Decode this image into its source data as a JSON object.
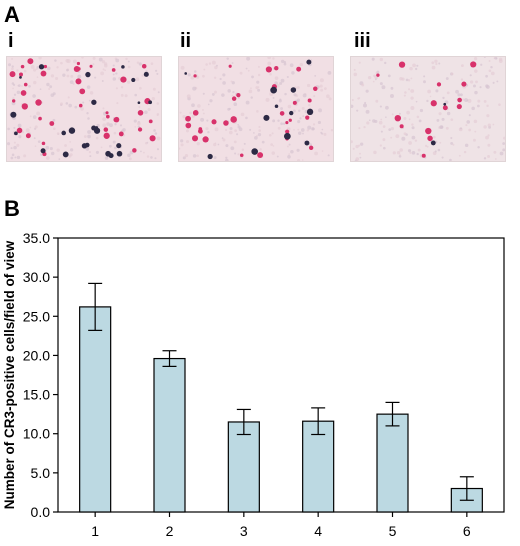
{
  "panel_a": {
    "letter": "A",
    "images": [
      {
        "label": "i",
        "blue_dots": 24,
        "red_dots": 40
      },
      {
        "label": "ii",
        "blue_dots": 12,
        "red_dots": 30
      },
      {
        "label": "iii",
        "blue_dots": 2,
        "red_dots": 14
      }
    ]
  },
  "panel_b": {
    "letter": "B"
  },
  "chart_data": {
    "type": "bar",
    "categories": [
      "1",
      "2",
      "3",
      "4",
      "5",
      "6"
    ],
    "values": [
      26.2,
      19.6,
      11.5,
      11.6,
      12.5,
      3.0
    ],
    "errors": [
      3.0,
      1.0,
      1.6,
      1.7,
      1.5,
      1.5
    ],
    "ylabel": "Number of CR3-positive cells/field of view",
    "xlabel": "",
    "ylim": [
      0,
      35
    ],
    "yticks": [
      "0.0",
      "5.0",
      "10.0",
      "15.0",
      "20.0",
      "25.0",
      "30.0",
      "35.0"
    ],
    "bar_color": "#bcd9e2",
    "grid": false
  }
}
